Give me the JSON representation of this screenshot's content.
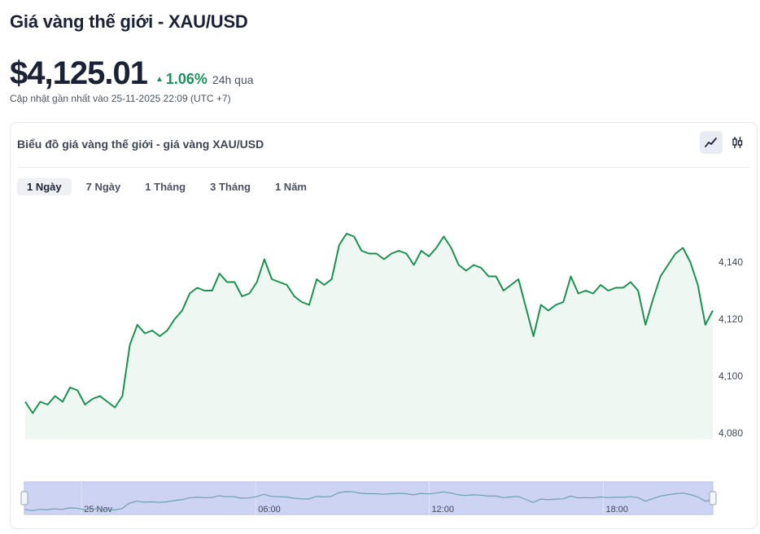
{
  "header": {
    "title": "Giá vàng thế giới - XAU/USD",
    "price": "$4,125.01",
    "change_pct": "1.06%",
    "change_period": "24h qua",
    "updated": "Cập nhật gần nhất vào 25-11-2025 22:09 (UTC +7)"
  },
  "card": {
    "title": "Biểu đồ giá vàng thế giới - giá vàng XAU/USD",
    "tools": [
      {
        "name": "line-chart-icon",
        "active": true
      },
      {
        "name": "candlestick-icon",
        "active": false
      }
    ],
    "tabs": [
      {
        "label": "1 Ngày",
        "active": true
      },
      {
        "label": "7 Ngày",
        "active": false
      },
      {
        "label": "1 Tháng",
        "active": false
      },
      {
        "label": "3 Tháng",
        "active": false
      },
      {
        "label": "1 Năm",
        "active": false
      }
    ]
  },
  "colors": {
    "line": "#1a9150",
    "area": "#eef7f1",
    "positive": "#17935b",
    "navigator_bg": "#cdd3f3"
  },
  "chart_data": {
    "type": "line",
    "ylim": [
      4078,
      4158
    ],
    "yticks": [
      4080,
      4100,
      4120,
      4140
    ],
    "ytick_labels": [
      "4,080",
      "4,100",
      "4,120",
      "4,140"
    ],
    "values": [
      4091,
      4087,
      4091,
      4090,
      4093,
      4091,
      4096,
      4095,
      4090,
      4092,
      4093,
      4091,
      4089,
      4093,
      4111,
      4118,
      4115,
      4116,
      4114,
      4116,
      4120,
      4123,
      4129,
      4131,
      4130,
      4130,
      4136,
      4133,
      4133,
      4128,
      4129,
      4133,
      4141,
      4134,
      4133,
      4132,
      4128,
      4126,
      4125,
      4134,
      4132,
      4134,
      4146,
      4150,
      4149,
      4144,
      4143,
      4143,
      4141,
      4143,
      4144,
      4143,
      4139,
      4144,
      4142,
      4145,
      4149,
      4145,
      4139,
      4137,
      4139,
      4138,
      4135,
      4135,
      4130,
      4132,
      4134,
      4124,
      4114,
      4125,
      4123,
      4125,
      4126,
      4135,
      4129,
      4130,
      4129,
      4132,
      4130,
      4131,
      4131,
      4133,
      4130,
      4118,
      4127,
      4135,
      4139,
      4143,
      4145,
      4140,
      4132,
      4118,
      4123
    ],
    "navigator": {
      "labels": [
        {
          "text": "25 Nov",
          "pos": 0.083
        },
        {
          "text": "06:00",
          "pos": 0.336
        },
        {
          "text": "12:00",
          "pos": 0.588
        },
        {
          "text": "18:00",
          "pos": 0.841
        }
      ]
    }
  }
}
